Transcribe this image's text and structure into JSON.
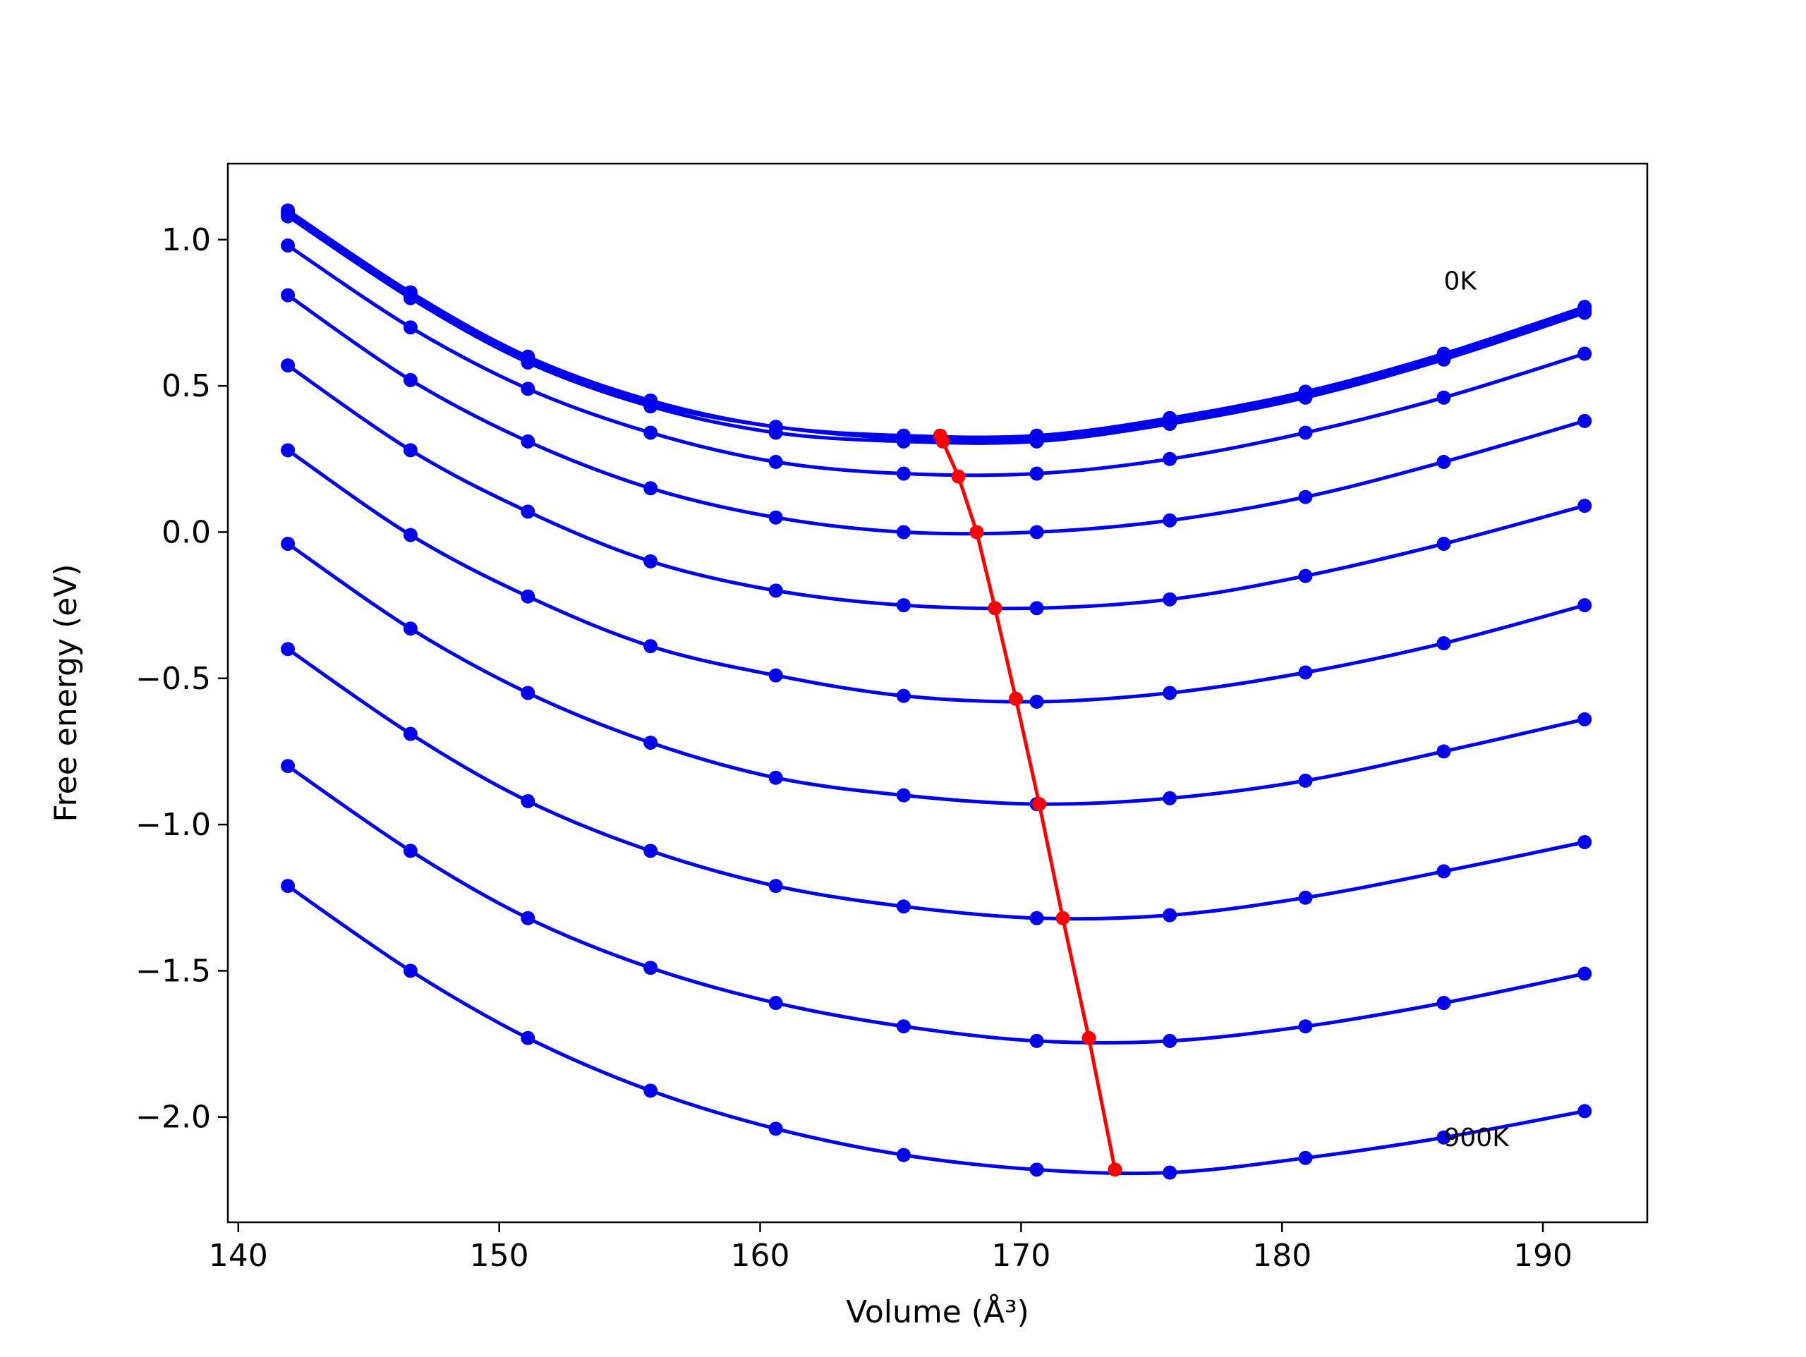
{
  "chart_data": {
    "type": "line",
    "xlabel": "Volume (Å³)",
    "ylabel": "Free energy (eV)",
    "xlim": [
      139.6,
      194.0
    ],
    "ylim": [
      -2.36,
      1.26
    ],
    "xticks": [
      140,
      150,
      160,
      170,
      180,
      190
    ],
    "xtick_labels": [
      "140",
      "150",
      "160",
      "170",
      "180",
      "190"
    ],
    "yticks": [
      1.0,
      0.5,
      0.0,
      -0.5,
      -1.0,
      -1.5,
      -2.0
    ],
    "ytick_labels": [
      "1.0",
      "0.5",
      "0.0",
      "−0.5",
      "−1.0",
      "−1.5",
      "−2.0"
    ],
    "grid": false,
    "annotations": [
      {
        "text": "0K",
        "x": 186.2,
        "y": 0.83
      },
      {
        "text": "900K",
        "x": 186.2,
        "y": -2.1
      }
    ],
    "x": [
      141.9,
      146.6,
      151.1,
      155.8,
      160.6,
      165.5,
      170.6,
      175.7,
      180.9,
      186.2,
      191.6
    ],
    "colors": {
      "curves": "#0000ee",
      "minima": "#ff0000"
    },
    "series": [
      {
        "values": [
          1.1,
          0.82,
          0.6,
          0.45,
          0.36,
          0.33,
          0.33,
          0.39,
          0.48,
          0.61,
          0.77
        ]
      },
      {
        "values": [
          1.09,
          0.81,
          0.59,
          0.44,
          0.36,
          0.32,
          0.32,
          0.38,
          0.47,
          0.6,
          0.76
        ]
      },
      {
        "values": [
          1.08,
          0.8,
          0.58,
          0.43,
          0.34,
          0.31,
          0.31,
          0.37,
          0.46,
          0.59,
          0.75
        ]
      },
      {
        "values": [
          0.98,
          0.7,
          0.49,
          0.34,
          0.24,
          0.2,
          0.2,
          0.25,
          0.34,
          0.46,
          0.61
        ]
      },
      {
        "values": [
          0.81,
          0.52,
          0.31,
          0.15,
          0.05,
          0.0,
          0.0,
          0.04,
          0.12,
          0.24,
          0.38
        ]
      },
      {
        "values": [
          0.57,
          0.28,
          0.07,
          -0.1,
          -0.2,
          -0.25,
          -0.26,
          -0.23,
          -0.15,
          -0.04,
          0.09
        ]
      },
      {
        "values": [
          0.28,
          -0.01,
          -0.22,
          -0.39,
          -0.49,
          -0.56,
          -0.58,
          -0.55,
          -0.48,
          -0.38,
          -0.25
        ]
      },
      {
        "values": [
          -0.04,
          -0.33,
          -0.55,
          -0.72,
          -0.84,
          -0.9,
          -0.93,
          -0.91,
          -0.85,
          -0.75,
          -0.64
        ]
      },
      {
        "values": [
          -0.4,
          -0.69,
          -0.92,
          -1.09,
          -1.21,
          -1.28,
          -1.32,
          -1.31,
          -1.25,
          -1.16,
          -1.06
        ]
      },
      {
        "values": [
          -0.8,
          -1.09,
          -1.32,
          -1.49,
          -1.61,
          -1.69,
          -1.74,
          -1.74,
          -1.69,
          -1.61,
          -1.51
        ]
      },
      {
        "values": [
          -1.21,
          -1.5,
          -1.73,
          -1.91,
          -2.04,
          -2.13,
          -2.18,
          -2.19,
          -2.14,
          -2.07,
          -1.98
        ]
      }
    ],
    "minima": {
      "x": [
        166.9,
        167.0,
        167.6,
        168.3,
        169.0,
        169.8,
        170.7,
        171.6,
        172.6,
        173.6
      ],
      "y": [
        0.33,
        0.31,
        0.19,
        0.0,
        -0.26,
        -0.57,
        -0.93,
        -1.32,
        -1.73,
        -2.18
      ]
    }
  }
}
